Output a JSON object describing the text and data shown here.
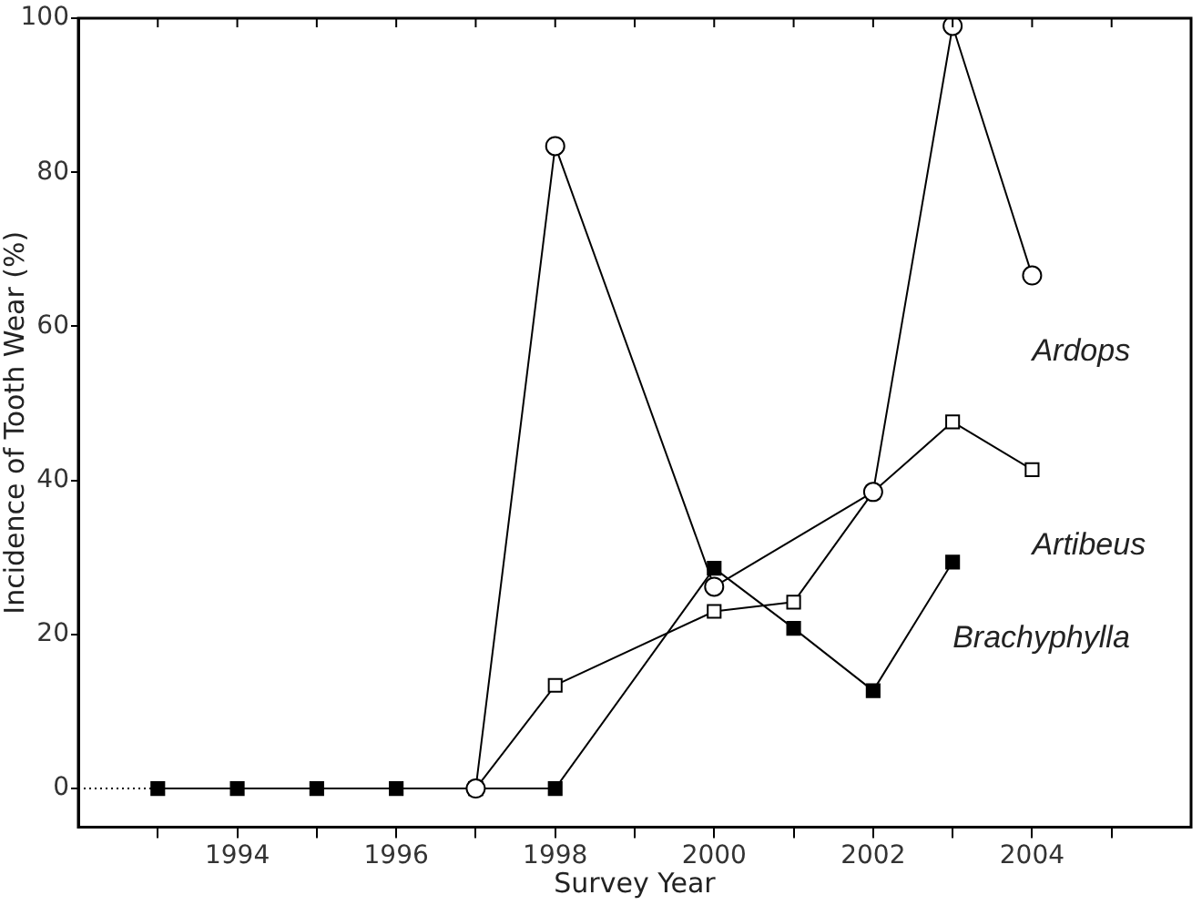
{
  "chart_data": {
    "type": "line",
    "xlabel": "Survey Year",
    "ylabel": "Incidence of Tooth Wear (%)",
    "xlim": [
      1992,
      2006
    ],
    "ylim": [
      -5,
      100
    ],
    "xticks": [
      {
        "value": 1993,
        "label": null
      },
      1994,
      {
        "value": 1995,
        "label": null
      },
      1996,
      {
        "value": 1997,
        "label": null
      },
      1998,
      {
        "value": 1999,
        "label": null
      },
      2000,
      {
        "value": 2001,
        "label": null
      },
      2002,
      {
        "value": 2003,
        "label": null
      },
      2004,
      {
        "value": 2005,
        "label": null
      }
    ],
    "yticks": [
      0,
      20,
      40,
      60,
      80,
      100
    ],
    "grid": false,
    "legend": false,
    "series": [
      {
        "x": [
          1992,
          1993
        ],
        "values": [
          0,
          0
        ],
        "color": "#000000",
        "line_style": "dotted"
      },
      {
        "name": "Ardops",
        "x": [
          1997,
          1998,
          2000,
          2002,
          2003,
          2004
        ],
        "values": [
          0,
          83.4,
          26.2,
          38.5,
          99,
          66.6
        ],
        "color": "#ffffff",
        "marker": "circle",
        "line_style": "solid"
      },
      {
        "name": "Artibeus",
        "x": [
          1997,
          1998,
          2000,
          2001,
          2002,
          2003,
          2004
        ],
        "values": [
          0,
          13.4,
          23,
          24.2,
          38.5,
          47.6,
          41.4
        ],
        "color": "#ffffff",
        "marker": "square",
        "line_style": "solid"
      },
      {
        "name": "Brachyphylla",
        "x": [
          1993,
          1994,
          1995,
          1996,
          1997,
          1998,
          2000,
          2001,
          2002,
          2003
        ],
        "values": [
          0,
          0,
          0,
          0,
          0,
          0,
          28.6,
          20.8,
          12.7,
          29.4
        ],
        "color": "#000000",
        "marker": "square",
        "line_style": "solid"
      }
    ]
  }
}
